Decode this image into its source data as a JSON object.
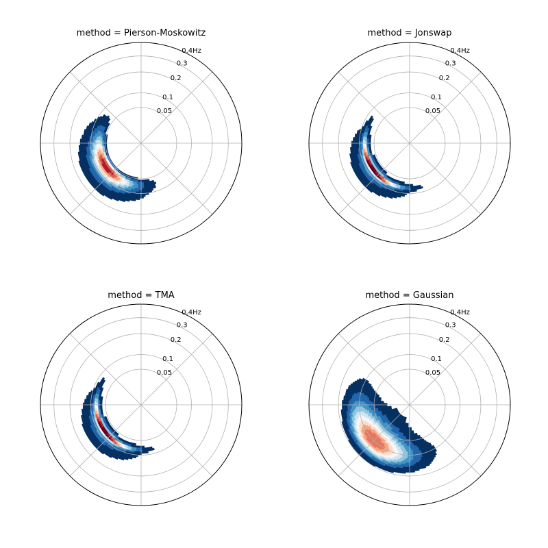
{
  "chart_data": [
    {
      "type": "polar-contour",
      "title": "method = Pierson-Moskowitz",
      "radial_tick_labels": [
        "0.05",
        "0.1",
        "0.2",
        "0.3",
        "0.4Hz"
      ],
      "radial_ticks": [
        0.05,
        0.1,
        0.2,
        0.3,
        0.4
      ],
      "rlim": [
        0,
        0.4
      ],
      "radial_scale": "sqrt",
      "angular_gridlines_deg": [
        0,
        45,
        90,
        135,
        180,
        225,
        270,
        315
      ],
      "peak_direction_deg": 215,
      "peak_frequency_hz": 0.07,
      "color_levels": [
        "#053061",
        "#2166ac",
        "#4393c3",
        "#92c5de",
        "#d1e5f0",
        "#f7f7f7",
        "#fddbc7",
        "#f4a582",
        "#d6604d",
        "#b2182b"
      ],
      "levels_visible": 10
    },
    {
      "type": "polar-contour",
      "title": "method = Jonswap",
      "radial_tick_labels": [
        "0.05",
        "0.1",
        "0.2",
        "0.3",
        "0.4Hz"
      ],
      "radial_ticks": [
        0.05,
        0.1,
        0.2,
        0.3,
        0.4
      ],
      "rlim": [
        0,
        0.4
      ],
      "radial_scale": "sqrt",
      "angular_gridlines_deg": [
        0,
        45,
        90,
        135,
        180,
        225,
        270,
        315
      ],
      "peak_direction_deg": 215,
      "peak_frequency_hz": 0.08,
      "color_levels": [
        "#053061",
        "#2166ac",
        "#4393c3",
        "#92c5de",
        "#d1e5f0",
        "#f7f7f7",
        "#fddbc7",
        "#f4a582",
        "#d6604d",
        "#b2182b",
        "#67001f"
      ],
      "levels_visible": 11
    },
    {
      "type": "polar-contour",
      "title": "method = TMA",
      "radial_tick_labels": [
        "0.05",
        "0.1",
        "0.2",
        "0.3",
        "0.4Hz"
      ],
      "radial_ticks": [
        0.05,
        0.1,
        0.2,
        0.3,
        0.4
      ],
      "rlim": [
        0,
        0.4
      ],
      "radial_scale": "sqrt",
      "angular_gridlines_deg": [
        0,
        45,
        90,
        135,
        180,
        225,
        270,
        315
      ],
      "peak_direction_deg": 215,
      "peak_frequency_hz": 0.08,
      "color_levels": [
        "#053061",
        "#2166ac",
        "#4393c3",
        "#92c5de",
        "#d1e5f0",
        "#f7f7f7",
        "#fddbc7",
        "#f4a582",
        "#d6604d",
        "#b2182b",
        "#67001f"
      ],
      "levels_visible": 11
    },
    {
      "type": "polar-contour",
      "title": "method = Gaussian",
      "radial_tick_labels": [
        "0.05",
        "0.1",
        "0.2",
        "0.3",
        "0.4Hz"
      ],
      "radial_ticks": [
        0.05,
        0.1,
        0.2,
        0.3,
        0.4
      ],
      "rlim": [
        0,
        0.4
      ],
      "radial_scale": "sqrt",
      "angular_gridlines_deg": [
        0,
        45,
        90,
        135,
        180,
        225,
        270,
        315
      ],
      "peak_direction_deg": 225,
      "peak_frequency_hz": 0.1,
      "color_levels": [
        "#053061",
        "#2166ac",
        "#4393c3",
        "#92c5de",
        "#d1e5f0",
        "#f7f7f7",
        "#fddbc7",
        "#f4a582",
        "#e6775f"
      ],
      "levels_visible": 9
    }
  ]
}
